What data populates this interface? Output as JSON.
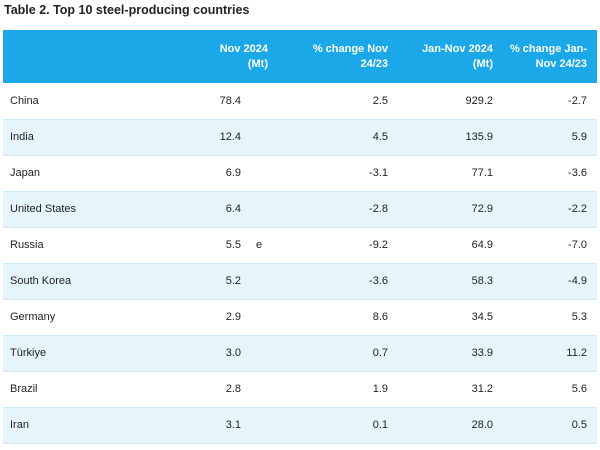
{
  "title": "Table 2. Top 10 steel-producing countries",
  "headers": {
    "c1_line1": "Nov 2024",
    "c1_line2": "(Mt)",
    "c2_line1": "% change Nov",
    "c2_line2": "24/23",
    "c3_line1": "Jan-Nov 2024",
    "c3_line2": "(Mt)",
    "c4_line1": "% change Jan-",
    "c4_line2": "Nov 24/23"
  },
  "rows": [
    {
      "country": "China",
      "nov": "78.4",
      "flag": "",
      "nov_change": "2.5",
      "ytd": "929.2",
      "ytd_change": "-2.7"
    },
    {
      "country": "India",
      "nov": "12.4",
      "flag": "",
      "nov_change": "4.5",
      "ytd": "135.9",
      "ytd_change": "5.9"
    },
    {
      "country": "Japan",
      "nov": "6.9",
      "flag": "",
      "nov_change": "-3.1",
      "ytd": "77.1",
      "ytd_change": "-3.6"
    },
    {
      "country": "United States",
      "nov": "6.4",
      "flag": "",
      "nov_change": "-2.8",
      "ytd": "72.9",
      "ytd_change": "-2.2"
    },
    {
      "country": "Russia",
      "nov": "5.5",
      "flag": "e",
      "nov_change": "-9.2",
      "ytd": "64.9",
      "ytd_change": "-7.0"
    },
    {
      "country": "South Korea",
      "nov": "5.2",
      "flag": "",
      "nov_change": "-3.6",
      "ytd": "58.3",
      "ytd_change": "-4.9"
    },
    {
      "country": "Germany",
      "nov": "2.9",
      "flag": "",
      "nov_change": "8.6",
      "ytd": "34.5",
      "ytd_change": "5.3"
    },
    {
      "country": "Türkiye",
      "nov": "3.0",
      "flag": "",
      "nov_change": "0.7",
      "ytd": "33.9",
      "ytd_change": "11.2"
    },
    {
      "country": "Brazil",
      "nov": "2.8",
      "flag": "",
      "nov_change": "1.9",
      "ytd": "31.2",
      "ytd_change": "5.6"
    },
    {
      "country": "Iran",
      "nov": "3.1",
      "flag": "",
      "nov_change": "0.1",
      "ytd": "28.0",
      "ytd_change": "0.5"
    }
  ]
}
